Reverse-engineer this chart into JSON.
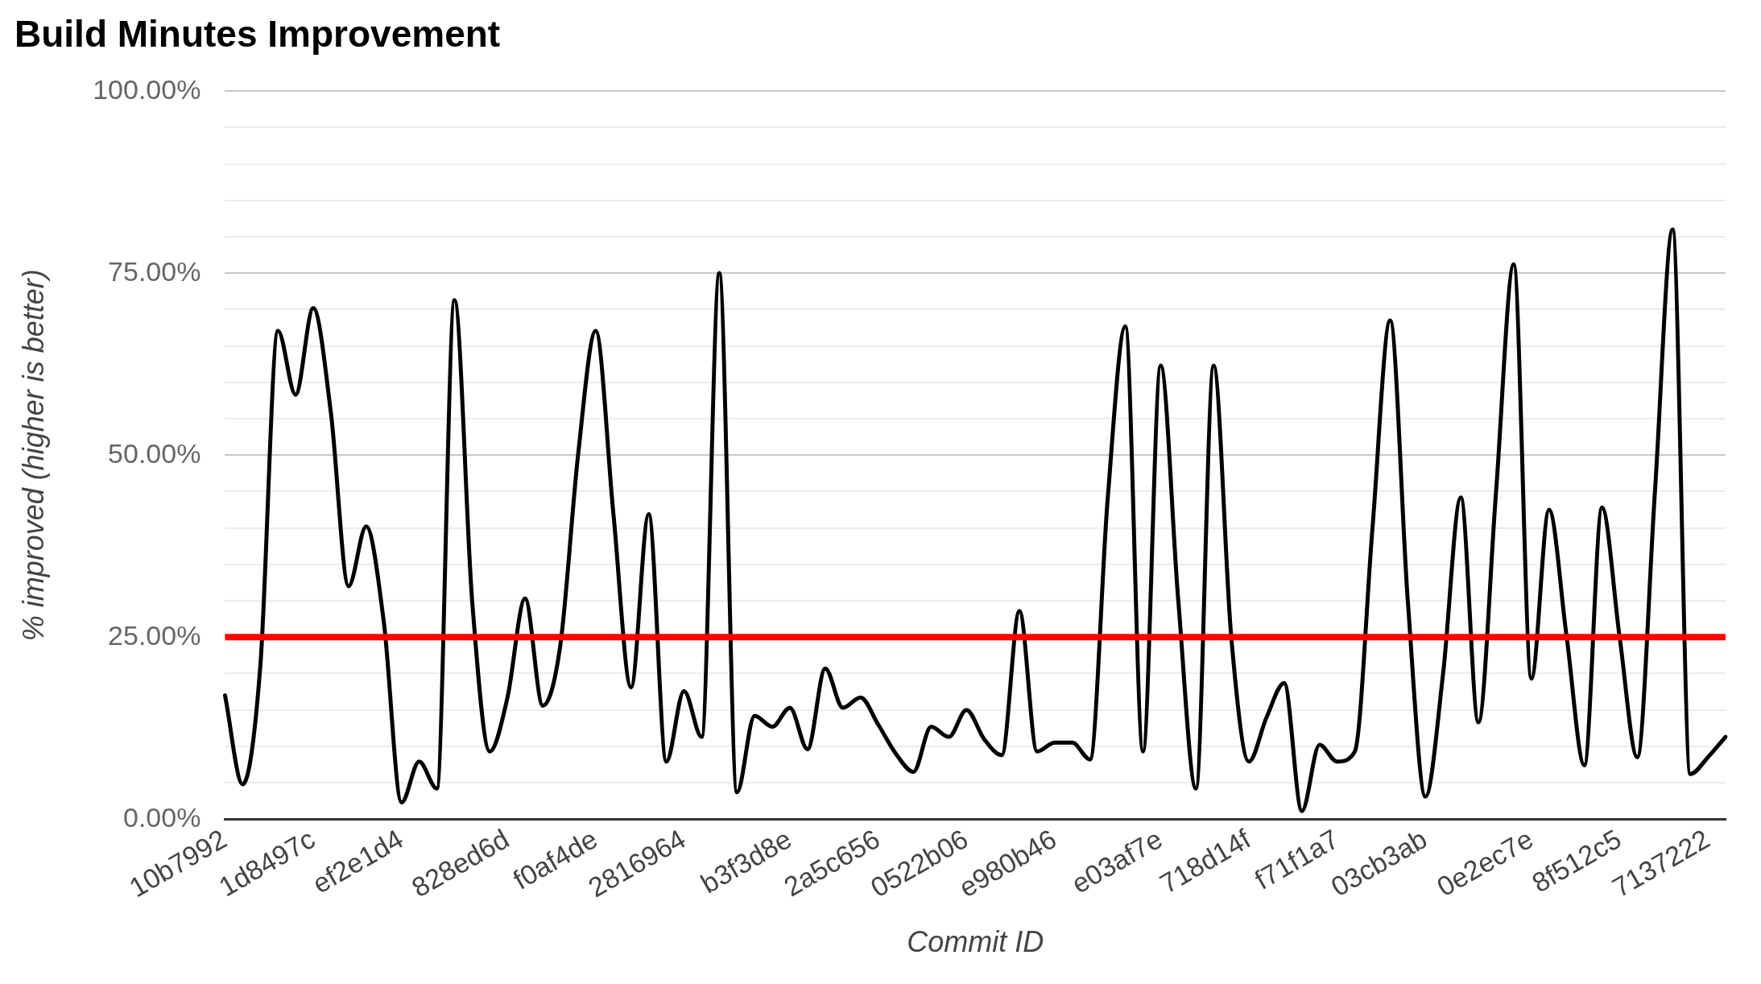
{
  "chart_data": {
    "type": "line",
    "title": "Build Minutes Improvement",
    "xlabel": "Commit ID",
    "ylabel": "% improved (higher is better)",
    "categories": [
      "10b7992",
      null,
      null,
      null,
      null,
      "1d8497c",
      null,
      null,
      null,
      null,
      "ef2e1d4",
      null,
      null,
      null,
      null,
      null,
      "828ed6d",
      null,
      null,
      null,
      null,
      "f0af4de",
      null,
      null,
      null,
      null,
      "2816964",
      null,
      null,
      null,
      null,
      null,
      "b3f3d8e",
      null,
      null,
      null,
      null,
      "2a5c656",
      null,
      null,
      null,
      null,
      "0522b06",
      null,
      null,
      null,
      null,
      "e980b46",
      null,
      null,
      null,
      null,
      null,
      "e03af7e",
      null,
      null,
      null,
      null,
      "718d14f",
      null,
      null,
      null,
      null,
      "f71f1a7",
      null,
      null,
      null,
      null,
      "03cb3ab",
      null,
      null,
      null,
      null,
      null,
      "0e2ec7e",
      null,
      null,
      null,
      null,
      "8f512c5",
      null,
      null,
      null,
      null,
      "7137222",
      null
    ],
    "series": [
      {
        "color": "#000000",
        "values": [
          17.0,
          4.8,
          21,
          67.1,
          58.3,
          70.2,
          55.8,
          32.0,
          40.2,
          27,
          2.3,
          7.9,
          4.2,
          71.3,
          30,
          9.3,
          16.7,
          30.3,
          15.6,
          24,
          50,
          67.1,
          42,
          18.1,
          41.9,
          7.9,
          17.6,
          11.3,
          75.0,
          3.7,
          14.2,
          12.7,
          15.3,
          9.6,
          20.7,
          15.3,
          16.7,
          13,
          9,
          6.5,
          12.7,
          11.3,
          15.0,
          11,
          8.8,
          28.6,
          9.3,
          10.5,
          10.5,
          8.2,
          44,
          67.7,
          9.3,
          62.3,
          30,
          4.2,
          62.3,
          25,
          7.9,
          14,
          18.7,
          1.1,
          10.2,
          7.9,
          9.3,
          40,
          68.5,
          30,
          3.1,
          20,
          44.2,
          13.3,
          45,
          76.2,
          19.3,
          42.5,
          25,
          7.4,
          42.8,
          25,
          8.5,
          45,
          81.0,
          6.2,
          8.5,
          11.3
        ]
      }
    ],
    "ylim": [
      0,
      100
    ],
    "yticks": [
      {
        "value": 0,
        "label": "0.00%"
      },
      {
        "value": 5,
        "label": null
      },
      {
        "value": 10,
        "label": null
      },
      {
        "value": 15,
        "label": null
      },
      {
        "value": 20,
        "label": null
      },
      {
        "value": 25,
        "label": "25.00%"
      },
      {
        "value": 30,
        "label": null
      },
      {
        "value": 35,
        "label": null
      },
      {
        "value": 40,
        "label": null
      },
      {
        "value": 45,
        "label": null
      },
      {
        "value": 50,
        "label": "50.00%"
      },
      {
        "value": 55,
        "label": null
      },
      {
        "value": 60,
        "label": null
      },
      {
        "value": 65,
        "label": null
      },
      {
        "value": 70,
        "label": null
      },
      {
        "value": 75,
        "label": "75.00%"
      },
      {
        "value": 80,
        "label": null
      },
      {
        "value": 85,
        "label": null
      },
      {
        "value": 90,
        "label": null
      },
      {
        "value": 95,
        "label": null
      },
      {
        "value": 100,
        "label": "100.00%"
      }
    ],
    "ref_lines": [
      {
        "axis": "y",
        "value": 25,
        "color": "#ff0000"
      }
    ],
    "grid": "y",
    "legend": false,
    "marker": "none",
    "line_style": "solid"
  }
}
